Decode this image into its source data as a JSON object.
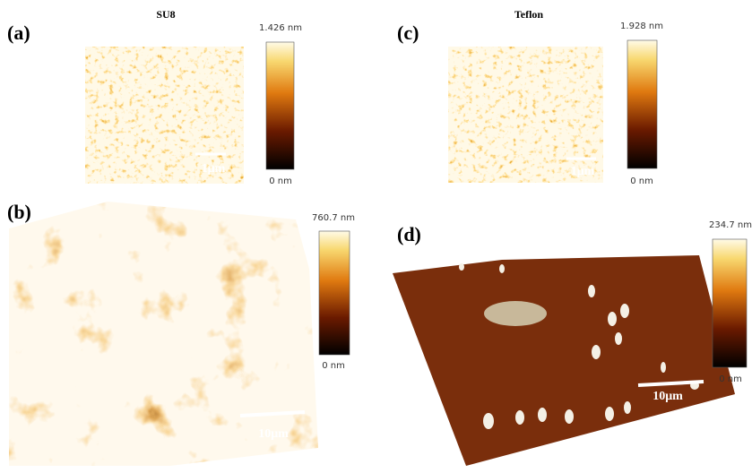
{
  "panels": [
    {
      "label": "(a)",
      "title": "SU8",
      "colorbar": {
        "max": "1.426 nm",
        "min": "0 nm"
      },
      "scalebar": "1μm"
    },
    {
      "label": "(b)",
      "colorbar": {
        "max": "760.7 nm",
        "min": "0 nm"
      },
      "scalebar": "10μm"
    },
    {
      "label": "(c)",
      "title": "Teflon",
      "colorbar": {
        "max": "1.928 nm",
        "min": "0 nm"
      },
      "scalebar": "1μm"
    },
    {
      "label": "(d)",
      "colorbar": {
        "max": "234.7 nm",
        "min": "0 nm"
      },
      "scalebar": "10μm"
    }
  ]
}
